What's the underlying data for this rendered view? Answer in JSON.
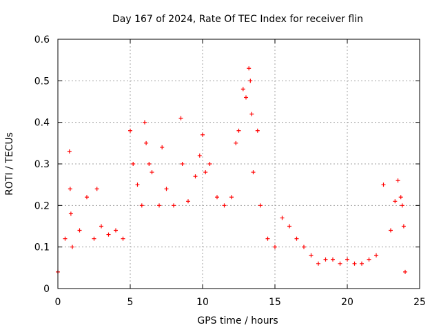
{
  "colors": {
    "series": "#ff0000",
    "grid": "#a0a0a0",
    "axis": "#000000"
  },
  "chart_data": {
    "type": "scatter",
    "title": "Day 167 of 2024, Rate Of TEC Index for receiver flin",
    "xlabel": "GPS time / hours",
    "ylabel": "ROTI / TECUs",
    "xlim": [
      0,
      25
    ],
    "ylim": [
      0,
      0.6
    ],
    "x_ticks": [
      0,
      5,
      10,
      15,
      20,
      25
    ],
    "x_tick_labels": [
      "0",
      "5",
      "10",
      "15",
      "20",
      "25"
    ],
    "y_ticks": [
      0,
      0.1,
      0.2,
      0.3,
      0.4,
      0.5,
      0.6
    ],
    "y_tick_labels": [
      "0",
      "0.1",
      "0.2",
      "0.3",
      "0.4",
      "0.5",
      "0.6"
    ],
    "grid": true,
    "marker": "+",
    "series": [
      {
        "x": [
          0.0,
          0.5,
          0.8,
          0.85,
          0.9,
          1.0,
          1.5,
          2.0,
          2.5,
          2.7,
          3.0,
          3.5,
          4.0,
          4.5,
          5.0,
          5.2,
          5.5,
          5.8,
          6.0,
          6.1,
          6.3,
          6.5,
          7.0,
          7.2,
          7.5,
          8.0,
          8.5,
          8.6,
          9.0,
          9.5,
          9.8,
          10.0,
          10.2,
          10.5,
          11.0,
          11.5,
          12.0,
          12.3,
          12.5,
          12.8,
          13.0,
          13.2,
          13.3,
          13.4,
          13.5,
          13.8,
          14.0,
          14.5,
          15.0,
          15.5,
          16.0,
          16.5,
          17.0,
          17.5,
          18.0,
          18.5,
          19.0,
          19.5,
          20.0,
          20.5,
          21.0,
          21.5,
          22.0,
          22.5,
          23.0,
          23.3,
          23.5,
          23.7,
          23.8,
          23.9,
          24.0
        ],
        "y": [
          0.04,
          0.12,
          0.33,
          0.24,
          0.18,
          0.1,
          0.14,
          0.22,
          0.12,
          0.24,
          0.15,
          0.13,
          0.14,
          0.12,
          0.38,
          0.3,
          0.25,
          0.2,
          0.4,
          0.35,
          0.3,
          0.28,
          0.2,
          0.34,
          0.24,
          0.2,
          0.41,
          0.3,
          0.21,
          0.27,
          0.32,
          0.37,
          0.28,
          0.3,
          0.22,
          0.2,
          0.22,
          0.35,
          0.38,
          0.48,
          0.46,
          0.53,
          0.5,
          0.42,
          0.28,
          0.38,
          0.2,
          0.12,
          0.1,
          0.17,
          0.15,
          0.12,
          0.1,
          0.08,
          0.06,
          0.07,
          0.07,
          0.06,
          0.07,
          0.06,
          0.06,
          0.07,
          0.08,
          0.25,
          0.14,
          0.21,
          0.26,
          0.22,
          0.2,
          0.15,
          0.04
        ]
      }
    ],
    "annotations": []
  }
}
